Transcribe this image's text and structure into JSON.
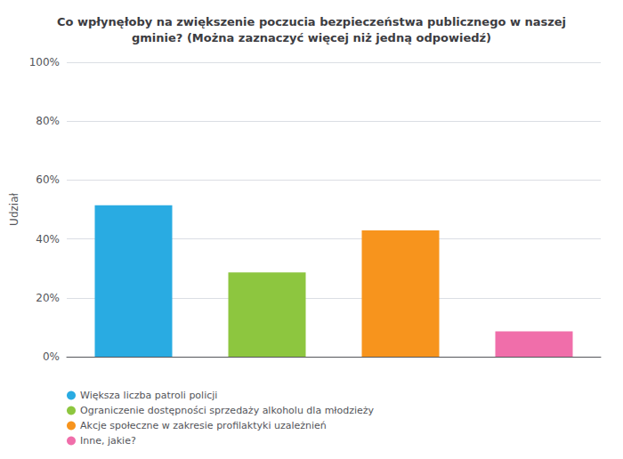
{
  "chart_data": {
    "type": "bar",
    "title": "Co wpłynęłoby na zwiększenie poczucia bezpieczeństwa publicznego w naszej\ngminie? (Można zaznaczyć więcej niż jedną odpowiedź)",
    "ylabel": "Udział",
    "categories": [
      "Większa liczba patroli policji",
      "Ograniczenie dostępności sprzedaży alkoholu dla młodzieży",
      "Akcje społeczne w zakresie profilaktyki uzależnień",
      "Inne, jakie?"
    ],
    "values": [
      51.4,
      28.6,
      42.9,
      8.6
    ],
    "colors": [
      "#29ABE2",
      "#8DC63F",
      "#F7941D",
      "#F06EAA"
    ],
    "ylim": [
      0,
      100
    ],
    "yticks": [
      {
        "value": 0,
        "label": "0%"
      },
      {
        "value": 20,
        "label": "20%"
      },
      {
        "value": 40,
        "label": "40%"
      },
      {
        "value": 60,
        "label": "60%"
      },
      {
        "value": 80,
        "label": "80%"
      },
      {
        "value": 100,
        "label": "100%"
      }
    ],
    "grid": true,
    "legend": "bottom",
    "tick_labels": "y"
  }
}
